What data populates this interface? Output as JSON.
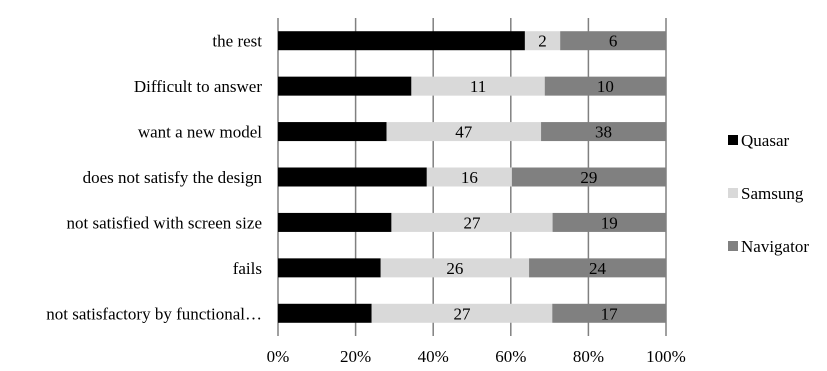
{
  "chart_data": {
    "type": "bar",
    "orientation": "horizontal",
    "stacked": "percent",
    "categories": [
      "the rest",
      "Difficult to answer",
      "want a new model",
      "does not satisfy the design",
      "not satisfied with screen size",
      "fails",
      "not satisfactory by functional…"
    ],
    "series": [
      {
        "name": "Quasar",
        "color": "#000000",
        "values": [
          14,
          11,
          33,
          28,
          19,
          18,
          14
        ],
        "label_color": "#000000"
      },
      {
        "name": "Samsung",
        "color": "#d9d9d9",
        "values": [
          2,
          11,
          47,
          16,
          27,
          26,
          27
        ],
        "label_color": "#000000"
      },
      {
        "name": "Navigator",
        "color": "#808080",
        "values": [
          6,
          10,
          38,
          29,
          19,
          24,
          17
        ],
        "label_color": "#000000"
      }
    ],
    "data_labels": true,
    "x_ticks": [
      "0%",
      "20%",
      "40%",
      "60%",
      "80%",
      "100%"
    ],
    "xlim": [
      0,
      1
    ],
    "grid": "vertical",
    "legend": "right",
    "title": "",
    "xlabel": "",
    "ylabel": ""
  }
}
